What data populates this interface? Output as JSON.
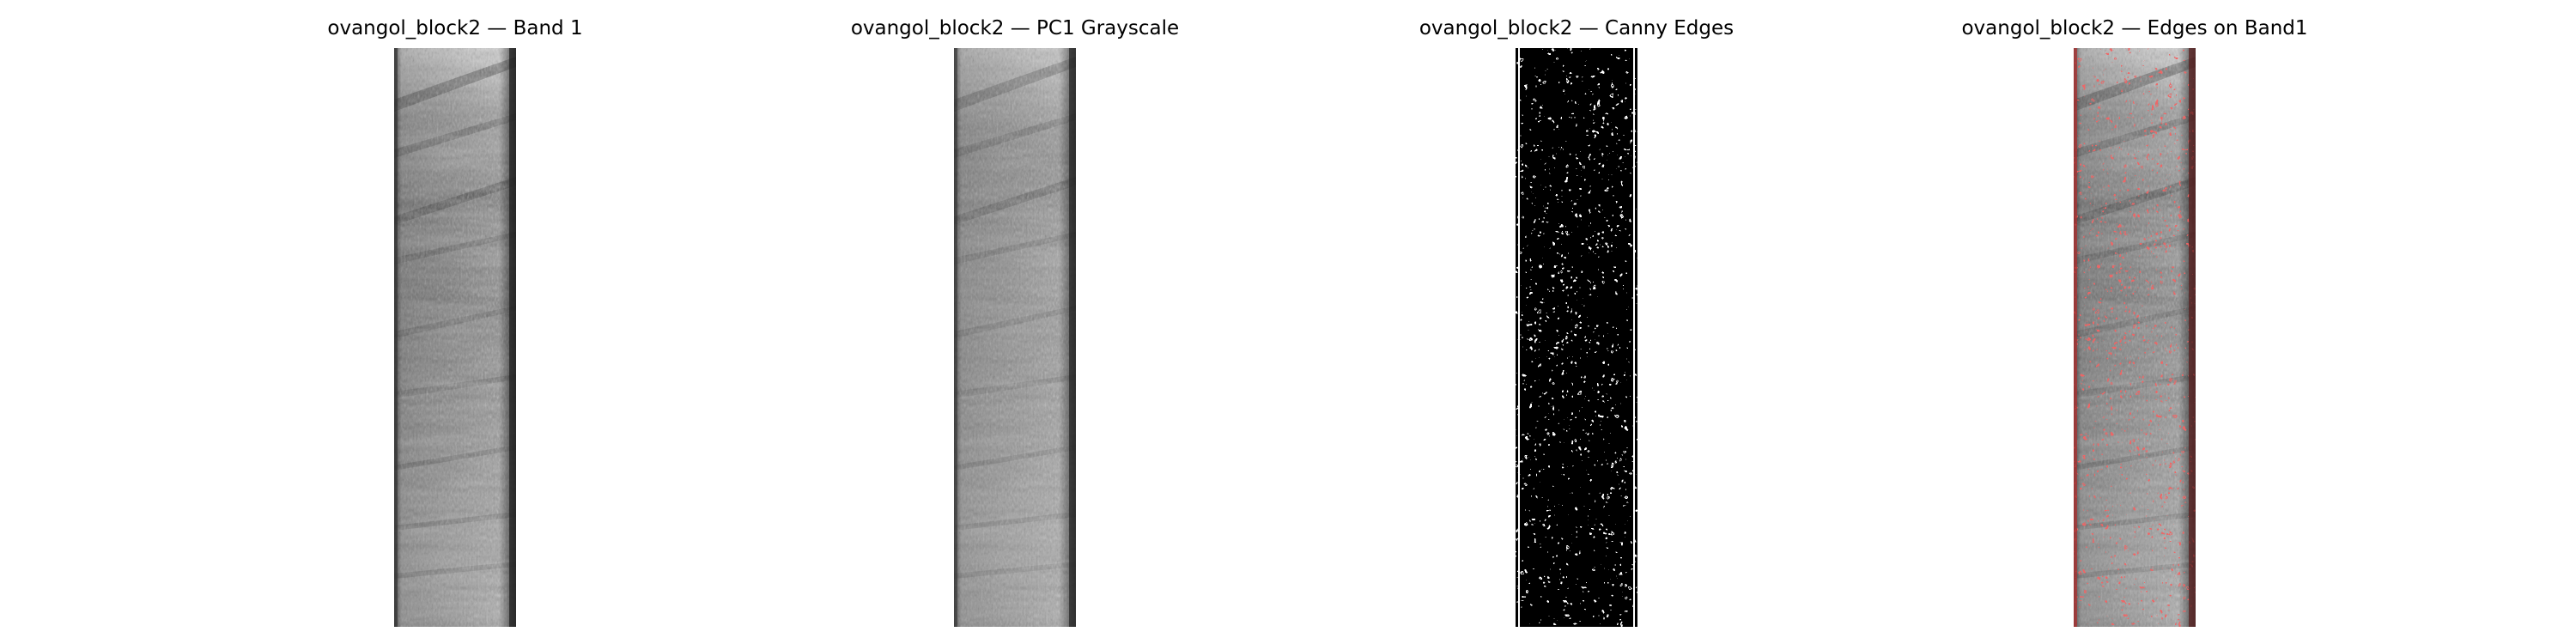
{
  "figure": {
    "panels": [
      {
        "id": "band1",
        "title": "ovangol_block2 — Band 1"
      },
      {
        "id": "pc1",
        "title": "ovangol_block2 — PC1 Grayscale"
      },
      {
        "id": "canny",
        "title": "ovangol_block2 — Canny Edges"
      },
      {
        "id": "overlay",
        "title": "ovangol_block2 — Edges on Band1"
      }
    ]
  },
  "colors": {
    "background": "#ffffff",
    "edge_overlay": "#e02020",
    "canny_background": "#000000",
    "canny_edges": "#ffffff"
  }
}
